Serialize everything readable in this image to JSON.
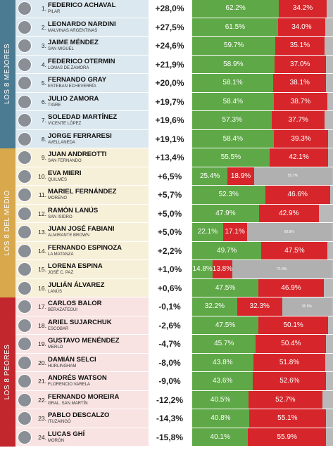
{
  "groups": [
    {
      "label": "LOS 8 MEJORES",
      "rows": [
        {
          "rank": "1.",
          "name": "FEDERICO ACHAVAL",
          "district": "PILAR",
          "net": "+28,0%",
          "approve": {
            "value": 62.2,
            "label": "62.2%"
          },
          "disapprove": {
            "value": 34.2,
            "label": "34.2%"
          }
        },
        {
          "rank": "2.",
          "name": "LEONARDO NARDINI",
          "district": "MALVINAS ARGENTINAS",
          "net": "+27,5%",
          "approve": {
            "value": 61.5,
            "label": "61.5%"
          },
          "disapprove": {
            "value": 34.0,
            "label": "34.0%"
          }
        },
        {
          "rank": "3.",
          "name": "JAIME MÉNDEZ",
          "district": "SAN MIGUEL",
          "net": "+24,6%",
          "approve": {
            "value": 59.7,
            "label": "59.7%"
          },
          "disapprove": {
            "value": 35.1,
            "label": "35.1%"
          }
        },
        {
          "rank": "4.",
          "name": "FEDERICO OTERMIN",
          "district": "LOMAS DE ZAMORA",
          "net": "+21,9%",
          "approve": {
            "value": 58.9,
            "label": "58.9%"
          },
          "disapprove": {
            "value": 37.0,
            "label": "37.0%"
          }
        },
        {
          "rank": "5.",
          "name": "FERNANDO GRAY",
          "district": "ESTEBAN ECHEVERRÍA",
          "net": "+20,0%",
          "approve": {
            "value": 58.1,
            "label": "58.1%"
          },
          "disapprove": {
            "value": 38.1,
            "label": "38.1%"
          }
        },
        {
          "rank": "6.",
          "name": "JULIO ZAMORA",
          "district": "TIGRE",
          "net": "+19,7%",
          "approve": {
            "value": 58.4,
            "label": "58.4%"
          },
          "disapprove": {
            "value": 38.7,
            "label": "38.7%"
          }
        },
        {
          "rank": "7.",
          "name": "SOLEDAD MARTÍNEZ",
          "district": "VICENTE LÓPEZ",
          "net": "+19,6%",
          "approve": {
            "value": 57.3,
            "label": "57.3%"
          },
          "disapprove": {
            "value": 37.7,
            "label": "37.7%"
          }
        },
        {
          "rank": "8.",
          "name": "JORGE FERRARESI",
          "district": "AVELLANEDA",
          "net": "+19,1%",
          "approve": {
            "value": 58.4,
            "label": "58.4%"
          },
          "disapprove": {
            "value": 39.3,
            "label": "39.3%"
          }
        }
      ]
    },
    {
      "label": "LOS 8 DEL MEDIO",
      "rows": [
        {
          "rank": "9.",
          "name": "JUAN ANDREOTTI",
          "district": "SAN FERNANDO",
          "net": "+13,4%",
          "approve": {
            "value": 55.5,
            "label": "55.5%"
          },
          "disapprove": {
            "value": 42.1,
            "label": "42.1%"
          }
        },
        {
          "rank": "10.",
          "name": "EVA MIERI",
          "district": "QUILMES",
          "net": "+6,5%",
          "approve": {
            "value": 25.4,
            "label": "25.4%"
          },
          "disapprove": {
            "value": 18.9,
            "label": "18.9%"
          },
          "other": {
            "value": 55.7,
            "label": "55.7%"
          }
        },
        {
          "rank": "11.",
          "name": "MARIEL FERNÁNDEZ",
          "district": "MORENO",
          "net": "+5,7%",
          "approve": {
            "value": 52.3,
            "label": "52.3%"
          },
          "disapprove": {
            "value": 46.6,
            "label": "46.6%"
          }
        },
        {
          "rank": "12.",
          "name": "RAMÓN LANÚS",
          "district": "SAN ISIDRO",
          "net": "+5,0%",
          "approve": {
            "value": 47.9,
            "label": "47.9%"
          },
          "disapprove": {
            "value": 42.9,
            "label": "42.9%"
          }
        },
        {
          "rank": "13.",
          "name": "JUAN JOSÉ FABIANI",
          "district": "ALMIRANTE BROWN",
          "net": "+5,0%",
          "approve": {
            "value": 22.1,
            "label": "22.1%"
          },
          "disapprove": {
            "value": 17.1,
            "label": "17.1%"
          },
          "other": {
            "value": 60.8,
            "label": "60.8%"
          }
        },
        {
          "rank": "14.",
          "name": "FERNANDO ESPINOZA",
          "district": "LA MATANZA",
          "net": "+2,2%",
          "approve": {
            "value": 49.7,
            "label": "49.7%"
          },
          "disapprove": {
            "value": 47.5,
            "label": "47.5%"
          }
        },
        {
          "rank": "15.",
          "name": "LORENA ESPINA",
          "district": "JOSÉ C. PAZ",
          "net": "+1,0%",
          "approve": {
            "value": 14.8,
            "label": "14.8%"
          },
          "disapprove": {
            "value": 13.8,
            "label": "13.8%"
          },
          "other": {
            "value": 71.4,
            "label": "71.4%"
          }
        },
        {
          "rank": "16.",
          "name": "JULIÁN ÁLVAREZ",
          "district": "LANÚS",
          "net": "+0,6%",
          "approve": {
            "value": 47.5,
            "label": "47.5%"
          },
          "disapprove": {
            "value": 46.9,
            "label": "46.9%"
          }
        }
      ]
    },
    {
      "label": "LOS 8 PEORES",
      "rows": [
        {
          "rank": "17.",
          "name": "CARLOS BALOR",
          "district": "BERAZATEGUI",
          "net": "-0,1%",
          "approve": {
            "value": 32.2,
            "label": "32.2%"
          },
          "disapprove": {
            "value": 32.3,
            "label": "32.3%"
          },
          "other": {
            "value": 35.5,
            "label": "35.5%"
          }
        },
        {
          "rank": "18.",
          "name": "ARIEL SUJARCHUK",
          "district": "ESCOBAR",
          "net": "-2,6%",
          "approve": {
            "value": 47.5,
            "label": "47.5%"
          },
          "disapprove": {
            "value": 50.1,
            "label": "50.1%"
          }
        },
        {
          "rank": "19.",
          "name": "GUSTAVO MENÉNDEZ",
          "district": "MERLO",
          "net": "-4,7%",
          "approve": {
            "value": 45.7,
            "label": "45.7%"
          },
          "disapprove": {
            "value": 50.4,
            "label": "50.4%"
          }
        },
        {
          "rank": "20.",
          "name": "DAMIÁN SELCI",
          "district": "HURLINGHAM",
          "net": "-8,0%",
          "approve": {
            "value": 43.8,
            "label": "43.8%"
          },
          "disapprove": {
            "value": 51.8,
            "label": "51.8%"
          }
        },
        {
          "rank": "21.",
          "name": "ANDRÉS WATSON",
          "district": "FLORENCIO VARELA",
          "net": "-9,0%",
          "approve": {
            "value": 43.6,
            "label": "43.6%"
          },
          "disapprove": {
            "value": 52.6,
            "label": "52.6%"
          }
        },
        {
          "rank": "22.",
          "name": "FERNANDO MOREIRA",
          "district": "GRAL. SAN MARTÍN",
          "net": "-12,2%",
          "approve": {
            "value": 40.5,
            "label": "40.5%"
          },
          "disapprove": {
            "value": 52.7,
            "label": "52.7%"
          }
        },
        {
          "rank": "23.",
          "name": "PABLO DESCALZO",
          "district": "ITUZAINGÓ",
          "net": "-14,3%",
          "approve": {
            "value": 40.8,
            "label": "40.8%"
          },
          "disapprove": {
            "value": 55.1,
            "label": "55.1%"
          }
        },
        {
          "rank": "24.",
          "name": "LUCAS GHÍ",
          "district": "MORÓN",
          "net": "-15,8%",
          "approve": {
            "value": 40.1,
            "label": "40.1%"
          },
          "disapprove": {
            "value": 55.9,
            "label": "55.9%"
          }
        }
      ]
    }
  ]
}
